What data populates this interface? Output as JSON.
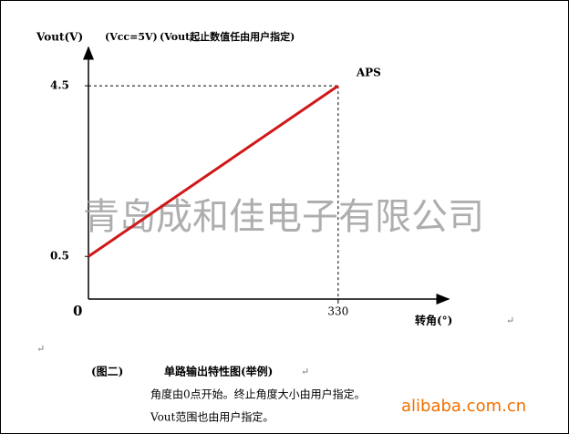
{
  "chart_data": {
    "type": "line",
    "y_label": "Vout(V)",
    "subtitle": "(Vcc=5V)",
    "note": "(Vout起止数值任由用户指定)",
    "x_label": "转角(°)",
    "origin_label": "0",
    "point_label": "APS",
    "x": [
      0,
      330
    ],
    "series": [
      {
        "color": "#d01818",
        "values": [
          0.5,
          4.5
        ]
      }
    ],
    "xlim": [
      0,
      476
    ],
    "ylim": [
      -0.5,
      5.4
    ],
    "xticks": [
      330
    ],
    "yticks": [
      0.5,
      4.5
    ],
    "watermark": "青岛成和佳电子有限公司"
  },
  "caption": {
    "title": "(图二)",
    "subtitle": "单路输出特性图(举例)",
    "line1": "角度由0点开始。终止角度大小由用户指定。",
    "line2": "Vout范围也由用户指定。",
    "paragraph_mark": "↵"
  },
  "source": "alibaba.com.cn"
}
